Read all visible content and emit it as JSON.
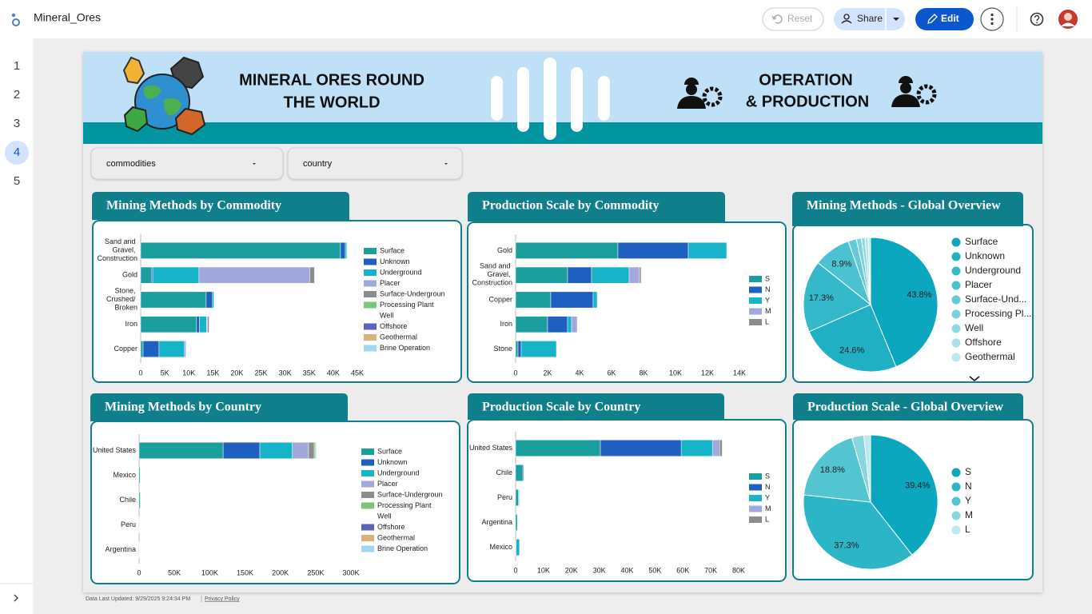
{
  "app": {
    "title": "Mineral_Ores",
    "buttons": [
      "Reset",
      "Share",
      "Edit"
    ]
  },
  "pages": [
    "1",
    "2",
    "3",
    "4",
    "5"
  ],
  "banner": {
    "title": [
      "MINERAL ORES ROUND",
      "THE WORLD"
    ],
    "subtitle": [
      "OPERATION",
      "& PRODUCTION"
    ]
  },
  "filters": [
    "commodities",
    "country"
  ],
  "footer": {
    "updated": "Data Last Updated: 9/29/2025 9:24:34 PM",
    "privacy": "Privacy Policy"
  },
  "chart_data": [
    {
      "type": "bar",
      "orientation": "horizontal",
      "stacked": true,
      "title": "Mining Methods by Commodity",
      "categories": [
        "Sand and Gravel, Construction",
        "Gold",
        "Stone, Crushed/ Broken",
        "Iron",
        "Copper"
      ],
      "series": [
        {
          "name": "Surface",
          "color": "#1a9e9e",
          "values": [
            41500,
            2200,
            13600,
            11600,
            500
          ]
        },
        {
          "name": "Unknown",
          "color": "#1f5fbf",
          "values": [
            1000,
            300,
            1300,
            600,
            3300
          ]
        },
        {
          "name": "Underground",
          "color": "#17b3c8",
          "values": [
            300,
            9600,
            300,
            1500,
            5300
          ]
        },
        {
          "name": "Placer",
          "color": "#a3a8dc",
          "values": [
            0,
            23000,
            0,
            200,
            300
          ]
        },
        {
          "name": "Surface-Undergroun",
          "color": "#8c8c8c",
          "values": [
            100,
            1000,
            0,
            300,
            0
          ]
        },
        {
          "name": "Processing Plant",
          "color": "#7cc57c",
          "values": [
            0,
            0,
            0,
            0,
            0
          ]
        },
        {
          "name": "Well",
          "color": "#ffffff",
          "values": [
            0,
            0,
            0,
            0,
            0
          ]
        },
        {
          "name": "Offshore",
          "color": "#5c63b8",
          "values": [
            0,
            0,
            0,
            0,
            0
          ]
        },
        {
          "name": "Geothermal",
          "color": "#d9b37a",
          "values": [
            0,
            0,
            0,
            0,
            0
          ]
        },
        {
          "name": "Brine Operation",
          "color": "#9ed8ef",
          "values": [
            0,
            0,
            0,
            0,
            0
          ]
        }
      ],
      "xlim": [
        0,
        45000
      ],
      "xticks": [
        0,
        {
          "value": 5000,
          "label": "5K"
        },
        {
          "value": 10000,
          "label": "10K"
        },
        {
          "value": 15000,
          "label": "15K"
        },
        {
          "value": 20000,
          "label": "20K"
        },
        {
          "value": 25000,
          "label": "25K"
        },
        {
          "value": 30000,
          "label": "30K"
        },
        {
          "value": 35000,
          "label": "35K"
        },
        {
          "value": 40000,
          "label": "40K"
        },
        {
          "value": 45000,
          "label": "45K"
        }
      ],
      "grid": false
    },
    {
      "type": "bar",
      "orientation": "horizontal",
      "stacked": true,
      "title": "Production Scale by Commodity",
      "categories": [
        "Gold",
        "Sand and Gravel, Construction",
        "Copper",
        "Iron",
        "Stone"
      ],
      "series": [
        {
          "name": "S",
          "color": "#1a9e9e",
          "values": [
            6400,
            3250,
            2200,
            2000,
            150
          ]
        },
        {
          "name": "N",
          "color": "#1f5fbf",
          "values": [
            4400,
            1500,
            2650,
            1250,
            200
          ]
        },
        {
          "name": "Y",
          "color": "#17b3c8",
          "values": [
            2400,
            2350,
            250,
            250,
            2200
          ]
        },
        {
          "name": "M",
          "color": "#a3a8dc",
          "values": [
            0,
            650,
            0,
            350,
            0
          ]
        },
        {
          "name": "L",
          "color": "#8c8c8c",
          "values": [
            0,
            100,
            0,
            0,
            0
          ]
        }
      ],
      "xlim": [
        0,
        14000
      ],
      "xticks": [
        0,
        {
          "value": 2000,
          "label": "2K"
        },
        {
          "value": 4000,
          "label": "4K"
        },
        {
          "value": 6000,
          "label": "6K"
        },
        {
          "value": 8000,
          "label": "8K"
        },
        {
          "value": 10000,
          "label": "10K"
        },
        {
          "value": 12000,
          "label": "12K"
        },
        {
          "value": 14000,
          "label": "14K"
        }
      ],
      "grid": false
    },
    {
      "type": "pie",
      "title": "Mining Methods - Global Overview",
      "categories": [
        "Surface",
        "Unknown",
        "Underground",
        "Placer",
        "Surface-Und...",
        "Processing Pl...",
        "Well",
        "Offshore",
        "Geothermal"
      ],
      "values": [
        43.8,
        24.6,
        17.3,
        8.9,
        2.0,
        1.2,
        0.9,
        0.7,
        0.6
      ],
      "value_labels": [
        "43.8%",
        "24.6%",
        "17.3%",
        "8.9%",
        null,
        null,
        null,
        null,
        null
      ],
      "colors": [
        "#0aa7bf",
        "#1fb0c4",
        "#35b9ca",
        "#4cc2d1",
        "#63cad6",
        "#79d2dc",
        "#8fdae2",
        "#a6e2e8",
        "#bce9ee"
      ]
    },
    {
      "type": "bar",
      "orientation": "horizontal",
      "stacked": true,
      "title": "Mining Methods by Country",
      "categories": [
        "United States",
        "Mexico",
        "Chile",
        "Peru",
        "Argentina"
      ],
      "series": [
        {
          "name": "Surface",
          "color": "#1a9e9e",
          "values": [
            119000,
            1500,
            1800,
            400,
            200
          ]
        },
        {
          "name": "Unknown",
          "color": "#1f5fbf",
          "values": [
            52000,
            0,
            0,
            0,
            0
          ]
        },
        {
          "name": "Underground",
          "color": "#17b3c8",
          "values": [
            46000,
            300,
            300,
            100,
            100
          ]
        },
        {
          "name": "Placer",
          "color": "#a3a8dc",
          "values": [
            23000,
            0,
            0,
            0,
            0
          ]
        },
        {
          "name": "Surface-Undergroun",
          "color": "#8c8c8c",
          "values": [
            8000,
            0,
            0,
            0,
            0
          ]
        },
        {
          "name": "Processing Plant",
          "color": "#7cc57c",
          "values": [
            2000,
            0,
            0,
            0,
            0
          ]
        },
        {
          "name": "Well",
          "color": "#ffffff",
          "values": [
            0,
            0,
            0,
            0,
            0
          ]
        },
        {
          "name": "Offshore",
          "color": "#5c63b8",
          "values": [
            0,
            0,
            0,
            0,
            0
          ]
        },
        {
          "name": "Geothermal",
          "color": "#d9b37a",
          "values": [
            0,
            0,
            0,
            0,
            0
          ]
        },
        {
          "name": "Brine Operation",
          "color": "#9ed8ef",
          "values": [
            1000,
            0,
            0,
            0,
            0
          ]
        }
      ],
      "xlim": [
        0,
        300000
      ],
      "xticks": [
        0,
        {
          "value": 50000,
          "label": "50K"
        },
        {
          "value": 100000,
          "label": "100K"
        },
        {
          "value": 150000,
          "label": "150K"
        },
        {
          "value": 200000,
          "label": "200K"
        },
        {
          "value": 250000,
          "label": "250K"
        },
        {
          "value": 300000,
          "label": "300K"
        }
      ],
      "grid": false
    },
    {
      "type": "bar",
      "orientation": "horizontal",
      "stacked": true,
      "title": "Production Scale by Country",
      "categories": [
        "United States",
        "Chile",
        "Peru",
        "Argentina",
        "Mexico"
      ],
      "series": [
        {
          "name": "S",
          "color": "#1a9e9e",
          "values": [
            30400,
            2600,
            1000,
            600,
            200
          ]
        },
        {
          "name": "N",
          "color": "#1f5fbf",
          "values": [
            29000,
            300,
            0,
            0,
            0
          ]
        },
        {
          "name": "Y",
          "color": "#17b3c8",
          "values": [
            11200,
            0,
            300,
            0,
            1200
          ]
        },
        {
          "name": "M",
          "color": "#a3a8dc",
          "values": [
            2600,
            0,
            0,
            0,
            0
          ]
        },
        {
          "name": "L",
          "color": "#8c8c8c",
          "values": [
            900,
            0,
            0,
            0,
            0
          ]
        }
      ],
      "xlim": [
        0,
        80000
      ],
      "xticks": [
        0,
        {
          "value": 10000,
          "label": "10K"
        },
        {
          "value": 20000,
          "label": "20K"
        },
        {
          "value": 30000,
          "label": "30K"
        },
        {
          "value": 40000,
          "label": "40K"
        },
        {
          "value": 50000,
          "label": "50K"
        },
        {
          "value": 60000,
          "label": "60K"
        },
        {
          "value": 70000,
          "label": "70K"
        },
        {
          "value": 80000,
          "label": "80K"
        }
      ],
      "grid": false
    },
    {
      "type": "pie",
      "title": "Production Scale - Global Overview",
      "categories": [
        "S",
        "N",
        "Y",
        "M",
        "L"
      ],
      "values": [
        39.4,
        37.3,
        18.8,
        2.9,
        1.6
      ],
      "value_labels": [
        "39.4%",
        "37.3%",
        "18.8%",
        null,
        null
      ],
      "colors": [
        "#0aa7bf",
        "#2bb5c6",
        "#52c4d2",
        "#87d6df",
        "#bde9ee"
      ]
    }
  ]
}
